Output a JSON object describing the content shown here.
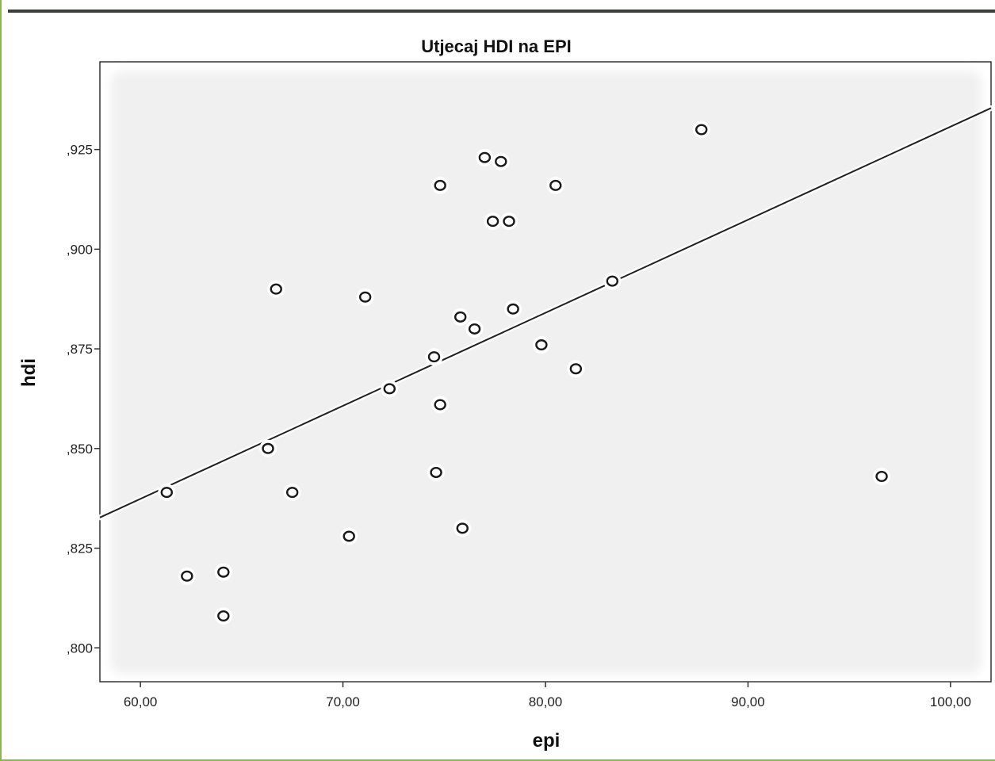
{
  "chart_data": {
    "type": "scatter",
    "title": "Utjecaj HDI na EPI",
    "xlabel": "epi",
    "ylabel": "hdi",
    "xlim": [
      58.0,
      102.0
    ],
    "ylim": [
      0.7915,
      0.947
    ],
    "xticks": [
      60,
      70,
      80,
      90,
      100
    ],
    "xtick_labels": [
      "60,00",
      "70,00",
      "80,00",
      "90,00",
      "100,00"
    ],
    "yticks": [
      0.8,
      0.825,
      0.85,
      0.875,
      0.9,
      0.925
    ],
    "ytick_labels": [
      ",800",
      ",825",
      ",850",
      ",875",
      ",900",
      ",925"
    ],
    "grid": false,
    "points": [
      {
        "x": 61.3,
        "y": 0.839
      },
      {
        "x": 62.3,
        "y": 0.818
      },
      {
        "x": 64.1,
        "y": 0.819
      },
      {
        "x": 64.1,
        "y": 0.808
      },
      {
        "x": 66.3,
        "y": 0.85
      },
      {
        "x": 66.7,
        "y": 0.89
      },
      {
        "x": 67.5,
        "y": 0.839
      },
      {
        "x": 70.3,
        "y": 0.828
      },
      {
        "x": 71.1,
        "y": 0.888
      },
      {
        "x": 72.3,
        "y": 0.865
      },
      {
        "x": 74.5,
        "y": 0.873
      },
      {
        "x": 74.6,
        "y": 0.844
      },
      {
        "x": 74.8,
        "y": 0.916
      },
      {
        "x": 74.8,
        "y": 0.861
      },
      {
        "x": 75.8,
        "y": 0.883
      },
      {
        "x": 75.9,
        "y": 0.83
      },
      {
        "x": 76.5,
        "y": 0.88
      },
      {
        "x": 77.0,
        "y": 0.923
      },
      {
        "x": 77.4,
        "y": 0.907
      },
      {
        "x": 77.8,
        "y": 0.922
      },
      {
        "x": 78.2,
        "y": 0.907
      },
      {
        "x": 78.4,
        "y": 0.885
      },
      {
        "x": 79.8,
        "y": 0.876
      },
      {
        "x": 80.5,
        "y": 0.916
      },
      {
        "x": 81.5,
        "y": 0.87
      },
      {
        "x": 83.3,
        "y": 0.892
      },
      {
        "x": 87.7,
        "y": 0.93
      },
      {
        "x": 96.6,
        "y": 0.843
      }
    ],
    "fit_line": {
      "x": [
        58.0,
        102.0
      ],
      "y": [
        0.8327,
        0.9354
      ]
    }
  }
}
